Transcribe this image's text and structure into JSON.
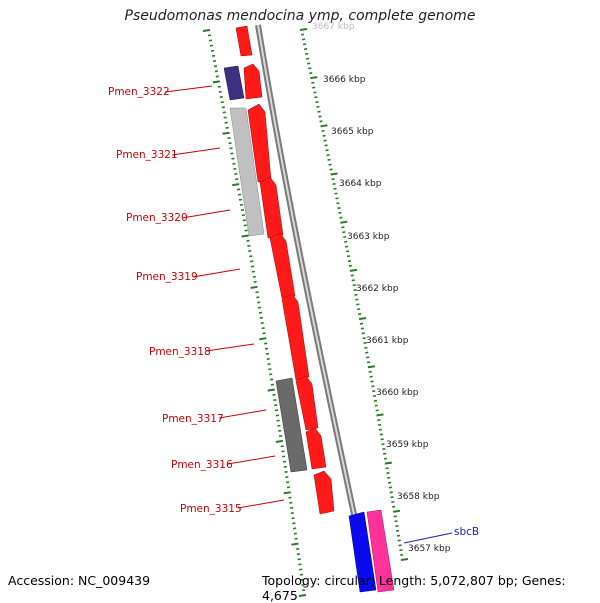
{
  "title": "Pseudomonas mendocina ymp, complete genome",
  "accession": "Accession: NC_009439",
  "stats": "Topology: circular; Length: 5,072,807 bp; Genes: 4,675",
  "colors": {
    "forward_gene": "#ff1a1a",
    "reverse_gene_light": "#c0c0c0",
    "reverse_gene_dark": "#6a6a6a",
    "reverse_gene_purple": "#3c3080",
    "reverse_gene_blue": "#0a0aee",
    "reverse_gene_pink": "#ff3399",
    "backbone": "#8c8c8c",
    "tick": "#2a7a2a",
    "label_red": "#cc0000",
    "label_blue": "#1a1acc"
  },
  "kbp_labels": [
    "3666 kbp",
    "3665 kbp",
    "3664 kbp",
    "3663 kbp",
    "3662 kbp",
    "3661 kbp",
    "3660 kbp",
    "3659 kbp",
    "3658 kbp",
    "3657 kbp"
  ],
  "kbp_top_partial": "3667 kbp",
  "gene_labels": [
    "Pmen_3322",
    "Pmen_3321",
    "Pmen_3320",
    "Pmen_3319",
    "Pmen_3318",
    "Pmen_3317",
    "Pmen_3316",
    "Pmen_3315"
  ],
  "gene_label_blue": "sbcB"
}
